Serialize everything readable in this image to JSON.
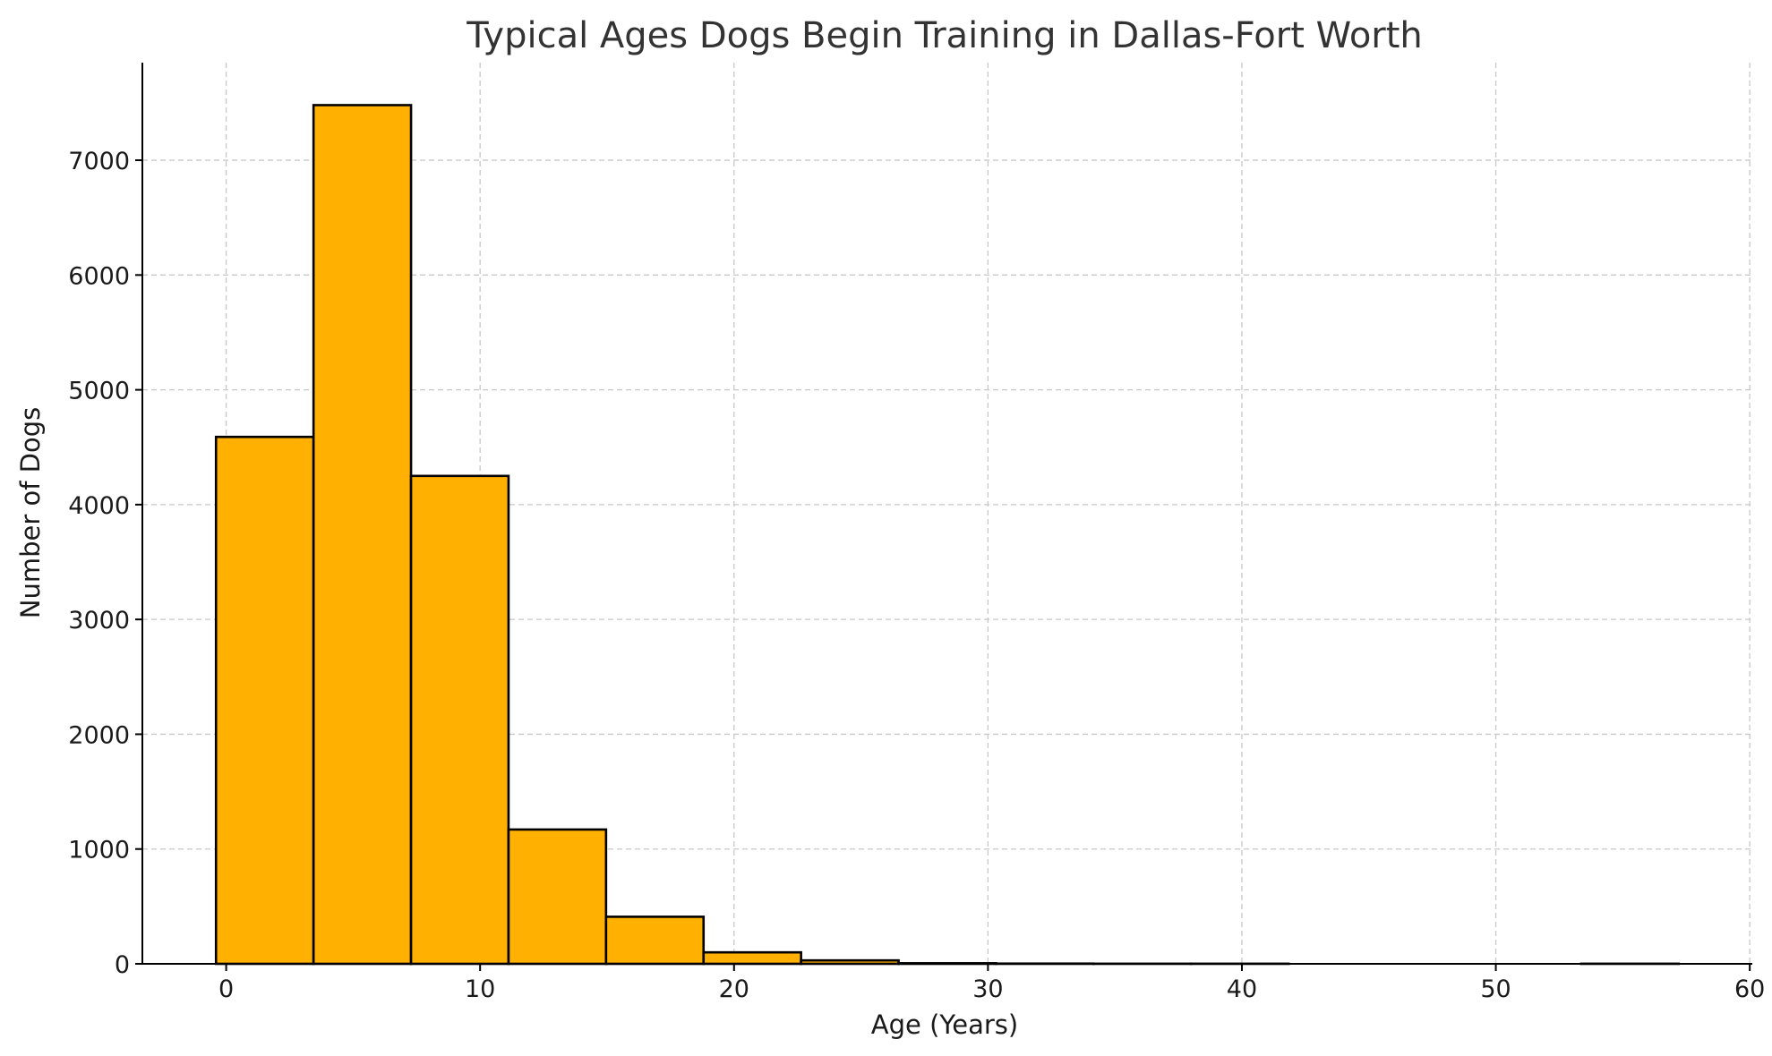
{
  "chart_data": {
    "type": "bar",
    "title": "Typical Ages Dogs Begin Training in Dallas-Fort Worth",
    "xlabel": "Age (Years)",
    "ylabel": "Number of Dogs",
    "bins": [
      {
        "x0": -0.4,
        "x1": 3.44,
        "value": 4590
      },
      {
        "x0": 3.44,
        "x1": 7.28,
        "value": 7480
      },
      {
        "x0": 7.28,
        "x1": 11.12,
        "value": 4250
      },
      {
        "x0": 11.12,
        "x1": 14.96,
        "value": 1170
      },
      {
        "x0": 14.96,
        "x1": 18.8,
        "value": 410
      },
      {
        "x0": 18.8,
        "x1": 22.64,
        "value": 100
      },
      {
        "x0": 22.64,
        "x1": 26.48,
        "value": 30
      },
      {
        "x0": 26.48,
        "x1": 30.32,
        "value": 5
      },
      {
        "x0": 30.32,
        "x1": 34.16,
        "value": 2
      },
      {
        "x0": 34.16,
        "x1": 38.0,
        "value": 1
      },
      {
        "x0": 38.0,
        "x1": 41.84,
        "value": 1
      },
      {
        "x0": 41.84,
        "x1": 45.68,
        "value": 0
      },
      {
        "x0": 45.68,
        "x1": 49.52,
        "value": 0
      },
      {
        "x0": 49.52,
        "x1": 53.36,
        "value": 0
      },
      {
        "x0": 53.36,
        "x1": 57.2,
        "value": 1
      }
    ],
    "xlim": [
      -3.3,
      60.1
    ],
    "ylim": [
      0,
      7850
    ],
    "xticks": [
      0,
      10,
      20,
      30,
      40,
      50,
      60
    ],
    "yticks": [
      0,
      1000,
      2000,
      3000,
      4000,
      5000,
      6000,
      7000
    ],
    "grid": true,
    "colors": {
      "bar": "#ffb000",
      "edge": "#000000",
      "grid": "#c8c8c8"
    }
  }
}
